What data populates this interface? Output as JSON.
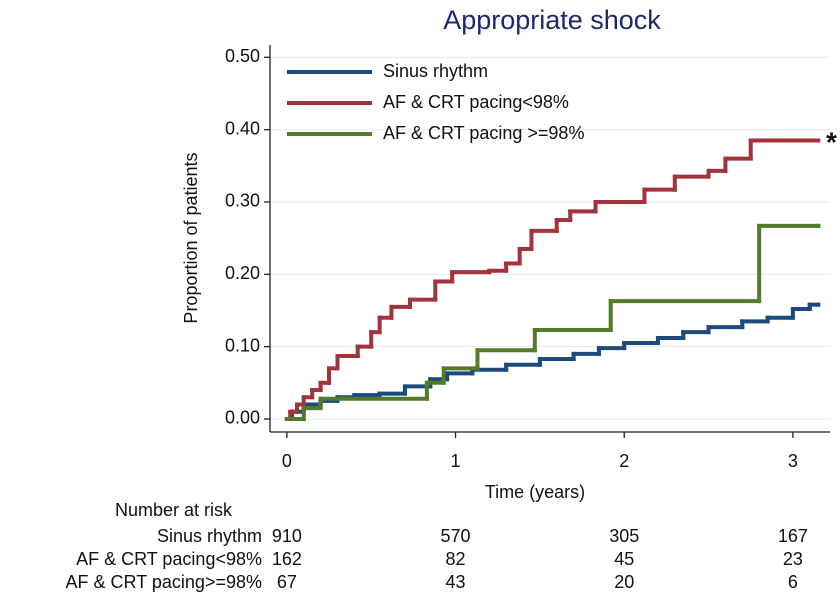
{
  "chart_data": {
    "type": "step",
    "title": "Appropriate shock",
    "x_label": "Time (years)",
    "y_label": "Proportion of patients",
    "xlim": [
      -0.1,
      3.22
    ],
    "ylim": [
      -0.018,
      0.517
    ],
    "xticks": [
      0,
      1,
      2,
      3
    ],
    "yticks": [
      {
        "value": 0,
        "label": "0.00"
      },
      {
        "value": 0.1,
        "label": "0.10"
      },
      {
        "value": 0.2,
        "label": "0.20"
      },
      {
        "value": 0.3,
        "label": "0.30"
      },
      {
        "value": 0.4,
        "label": "0.40"
      },
      {
        "value": 0.5,
        "label": "0.50"
      }
    ],
    "grid": true,
    "legend": "upper left",
    "annotation": "*",
    "series": [
      {
        "name": "Sinus rhythm",
        "color": "#1d4a7e",
        "x": [
          0,
          0.03,
          0.1,
          0.2,
          0.3,
          0.4,
          0.55,
          0.7,
          0.85,
          0.95,
          1.1,
          1.3,
          1.5,
          1.7,
          1.85,
          2.0,
          2.2,
          2.35,
          2.5,
          2.7,
          2.85,
          3.0,
          3.1,
          3.15
        ],
        "values": [
          0,
          0.01,
          0.02,
          0.025,
          0.03,
          0.033,
          0.035,
          0.045,
          0.055,
          0.063,
          0.068,
          0.075,
          0.083,
          0.09,
          0.098,
          0.105,
          0.112,
          0.12,
          0.127,
          0.135,
          0.14,
          0.152,
          0.158,
          0.158
        ]
      },
      {
        "name": "AF & CRT pacing<98%",
        "color": "#a2323c",
        "x": [
          0,
          0.02,
          0.06,
          0.1,
          0.15,
          0.2,
          0.25,
          0.3,
          0.42,
          0.5,
          0.55,
          0.62,
          0.73,
          0.88,
          0.98,
          1.2,
          1.3,
          1.38,
          1.45,
          1.6,
          1.68,
          1.83,
          2.12,
          2.3,
          2.5,
          2.6,
          2.75,
          3.15
        ],
        "values": [
          0,
          0.01,
          0.02,
          0.03,
          0.04,
          0.05,
          0.07,
          0.087,
          0.1,
          0.12,
          0.14,
          0.155,
          0.165,
          0.19,
          0.203,
          0.205,
          0.215,
          0.235,
          0.26,
          0.275,
          0.287,
          0.3,
          0.317,
          0.335,
          0.343,
          0.36,
          0.385,
          0.385
        ]
      },
      {
        "name": "AF & CRT pacing >=98%",
        "color": "#527c2a",
        "x": [
          0,
          0.1,
          0.2,
          0.83,
          0.93,
          1.13,
          1.47,
          1.92,
          2.8,
          3.15
        ],
        "values": [
          0,
          0.015,
          0.028,
          0.05,
          0.07,
          0.095,
          0.123,
          0.163,
          0.267,
          0.267
        ]
      }
    ],
    "risk_table": {
      "title": "Number at risk",
      "rows": [
        {
          "label": "Sinus rhythm",
          "values": [
            910,
            570,
            305,
            167
          ]
        },
        {
          "label": "AF & CRT pacing<98%",
          "values": [
            162,
            82,
            45,
            23
          ]
        },
        {
          "label": "AF & CRT pacing>=98%",
          "values": [
            67,
            43,
            20,
            6
          ]
        }
      ]
    }
  }
}
